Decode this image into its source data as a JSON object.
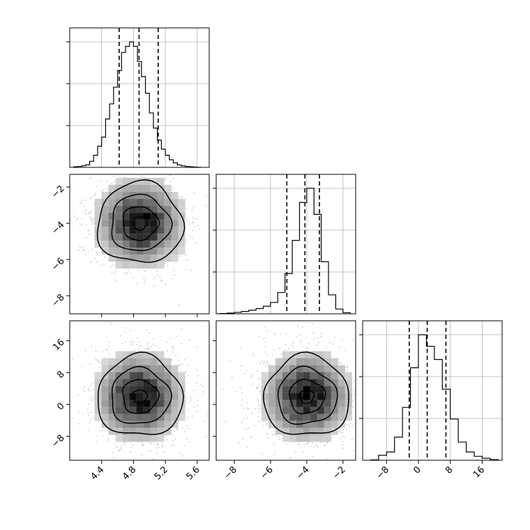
{
  "chart_data": {
    "type": "corner",
    "params": [
      {
        "ticks": [
          4.4,
          4.8,
          5.2,
          5.6
        ],
        "tick_labels": [
          "4.4",
          "4.8",
          "5.2",
          "5.6"
        ],
        "range": [
          4.0,
          5.75
        ]
      },
      {
        "ticks": [
          -8,
          -6,
          -4,
          -2
        ],
        "tick_labels": [
          "−8",
          "−6",
          "−4",
          "−2"
        ],
        "range": [
          -9.0,
          -1.3
        ]
      },
      {
        "ticks": [
          -8,
          0,
          8,
          16
        ],
        "tick_labels": [
          "−8",
          "0",
          "8",
          "16"
        ],
        "range": [
          -14.0,
          21.0
        ]
      }
    ],
    "grid": true,
    "histograms": [
      {
        "param": 0,
        "edges": [
          4.05,
          4.1,
          4.15,
          4.2,
          4.25,
          4.3,
          4.35,
          4.4,
          4.45,
          4.5,
          4.55,
          4.6,
          4.65,
          4.7,
          4.75,
          4.8,
          4.85,
          4.9,
          4.95,
          5.0,
          5.05,
          5.1,
          5.15,
          5.2,
          5.25,
          5.3,
          5.35,
          5.4,
          5.45,
          5.5,
          5.55,
          5.6,
          5.65
        ],
        "counts": [
          2,
          3,
          5,
          8,
          20,
          40,
          70,
          100,
          160,
          210,
          265,
          320,
          380,
          400,
          415,
          400,
          350,
          300,
          245,
          180,
          130,
          90,
          60,
          40,
          25,
          15,
          8,
          5,
          3,
          2,
          1,
          0
        ],
        "quantiles": [
          4.62,
          4.87,
          5.11
        ]
      },
      {
        "param": 1,
        "edges": [
          -8.8,
          -8.4,
          -8.0,
          -7.6,
          -7.2,
          -6.8,
          -6.4,
          -6.0,
          -5.6,
          -5.2,
          -4.8,
          -4.4,
          -4.0,
          -3.6,
          -3.2,
          -2.8,
          -2.4,
          -2.0,
          -1.6
        ],
        "counts": [
          1,
          3,
          6,
          10,
          15,
          22,
          32,
          48,
          90,
          170,
          310,
          470,
          530,
          420,
          220,
          80,
          20,
          5
        ],
        "quantiles": [
          -5.1,
          -4.1,
          -3.3
        ]
      },
      {
        "param": 2,
        "edges": [
          -12,
          -10,
          -8,
          -6,
          -4,
          -2,
          0,
          2,
          4,
          6,
          8,
          10,
          12,
          14,
          16,
          18,
          20
        ],
        "counts": [
          1,
          15,
          25,
          70,
          160,
          280,
          380,
          345,
          305,
          215,
          125,
          55,
          25,
          12,
          6,
          2
        ],
        "quantiles": [
          -2.3,
          2.2,
          6.9
        ]
      }
    ],
    "scatter_panels": [
      {
        "x_param": 0,
        "y_param": 1,
        "center": [
          4.88,
          -4.0
        ],
        "contour_levels": 4
      },
      {
        "x_param": 0,
        "y_param": 2,
        "center": [
          4.88,
          2.0
        ],
        "contour_levels": 4
      },
      {
        "x_param": 1,
        "y_param": 2,
        "center": [
          -4.0,
          2.0
        ],
        "contour_levels": 4
      }
    ]
  }
}
